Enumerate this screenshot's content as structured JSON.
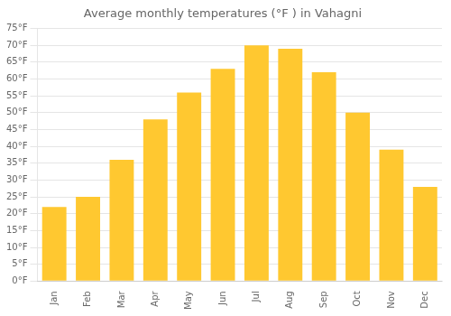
{
  "chart_data": {
    "type": "bar",
    "title": "Average monthly temperatures (°F ) in Vahagni",
    "categories": [
      "Jan",
      "Feb",
      "Mar",
      "Apr",
      "May",
      "Jun",
      "Jul",
      "Aug",
      "Sep",
      "Oct",
      "Nov",
      "Dec"
    ],
    "values": [
      22,
      25,
      36,
      48,
      56,
      63,
      70,
      69,
      62,
      50,
      39,
      28
    ],
    "color": "#FFC830",
    "ylim": [
      0,
      75
    ],
    "yticks": [
      {
        "value": 0,
        "label": "0°F"
      },
      {
        "value": 5,
        "label": "5°F"
      },
      {
        "value": 10,
        "label": "10°F"
      },
      {
        "value": 15,
        "label": "15°F"
      },
      {
        "value": 20,
        "label": "20°F"
      },
      {
        "value": 25,
        "label": "25°F"
      },
      {
        "value": 30,
        "label": "30°F"
      },
      {
        "value": 35,
        "label": "35°F"
      },
      {
        "value": 40,
        "label": "40°F"
      },
      {
        "value": 45,
        "label": "45°F"
      },
      {
        "value": 50,
        "label": "50°F"
      },
      {
        "value": 55,
        "label": "55°F"
      },
      {
        "value": 60,
        "label": "60°F"
      },
      {
        "value": 65,
        "label": "65°F"
      },
      {
        "value": 70,
        "label": "70°F"
      },
      {
        "value": 75,
        "label": "75°F"
      }
    ],
    "grid": true
  }
}
